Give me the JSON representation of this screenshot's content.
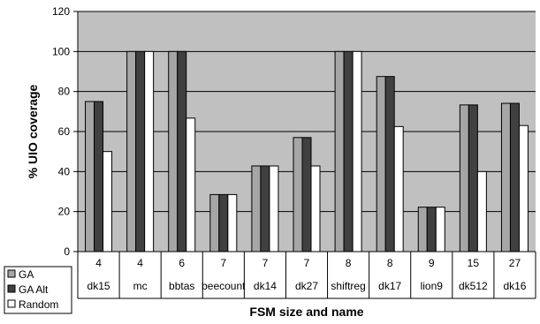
{
  "chart_data": {
    "type": "bar",
    "title": "",
    "xlabel": "FSM size and name",
    "ylabel": "% UIO coverage",
    "ylim": [
      0,
      120
    ],
    "yticks": [
      0,
      20,
      40,
      60,
      80,
      100,
      120
    ],
    "grid": true,
    "legend_position": "bottom-left",
    "plot_background": "#c0c0c0",
    "sizes": [
      "4",
      "4",
      "6",
      "7",
      "7",
      "7",
      "8",
      "8",
      "9",
      "15",
      "27"
    ],
    "categories": [
      "dk15",
      "mc",
      "bbtas",
      "beecount",
      "dk14",
      "dk27",
      "shiftreg",
      "dk17",
      "lion9",
      "dk512",
      "dk16"
    ],
    "series": [
      {
        "name": "GA",
        "color": "#a6a6a6",
        "values": [
          75,
          100,
          100,
          28.5,
          42.8,
          57,
          100,
          87.5,
          22.2,
          73.3,
          74.1
        ]
      },
      {
        "name": "GA Alt",
        "color": "#404040",
        "values": [
          75,
          100,
          100,
          28.5,
          42.8,
          57,
          100,
          87.5,
          22.2,
          73.3,
          74.1
        ]
      },
      {
        "name": "Random",
        "color": "#ffffff",
        "values": [
          50,
          100,
          66.7,
          28.5,
          42.8,
          42.8,
          100,
          62.5,
          22.2,
          40,
          63
        ]
      }
    ]
  }
}
